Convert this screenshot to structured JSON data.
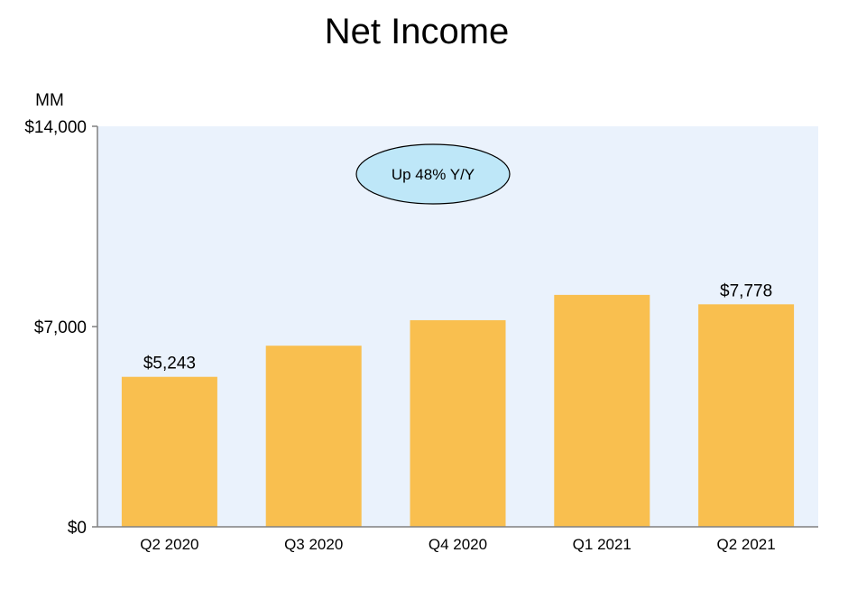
{
  "chart_data": {
    "type": "bar",
    "title": "Net Income",
    "unit_label": "MM",
    "categories": [
      "Q2 2020",
      "Q3 2020",
      "Q4 2020",
      "Q1 2021",
      "Q2 2021"
    ],
    "values": [
      5243,
      6331,
      7222,
      8107,
      7778
    ],
    "data_labels": [
      "$5,243",
      "",
      "",
      "",
      "$7,778"
    ],
    "ylim": [
      0,
      14000
    ],
    "yticks": [
      {
        "value": 0,
        "label": "$0"
      },
      {
        "value": 7000,
        "label": "$7,000"
      },
      {
        "value": 14000,
        "label": "$14,000"
      }
    ],
    "annotation": "Up 48% Y/Y",
    "grid": false,
    "colors": {
      "bar": "#F9BF4F",
      "plot_background": "#EAF2FC",
      "annotation_fill": "#BEE7F8",
      "axis": "#808080"
    }
  }
}
